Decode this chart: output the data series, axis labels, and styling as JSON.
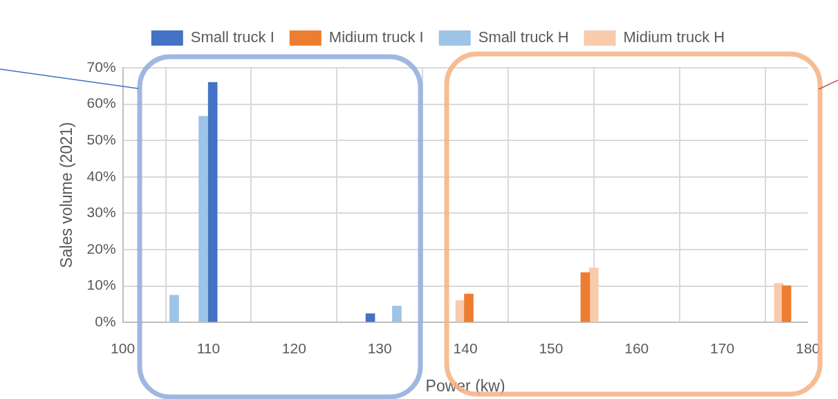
{
  "chart_data": {
    "type": "bar",
    "xlabel": "Power (kw)",
    "ylabel": "Sales volume (2021)",
    "xlim": [
      100,
      180
    ],
    "xticks": [
      100,
      110,
      120,
      130,
      140,
      150,
      160,
      170,
      180
    ],
    "ylim": [
      0,
      70
    ],
    "yticks": [
      {
        "value": 0,
        "label": "0%"
      },
      {
        "value": 10,
        "label": "10%"
      },
      {
        "value": 20,
        "label": "20%"
      },
      {
        "value": 30,
        "label": "30%"
      },
      {
        "value": 40,
        "label": "40%"
      },
      {
        "value": 50,
        "label": "50%"
      },
      {
        "value": 60,
        "label": "60%"
      },
      {
        "value": 70,
        "label": "70%"
      }
    ],
    "series": [
      {
        "name": "Small truck I",
        "color": "#4472c4",
        "x": [
          110.5,
          128.9
        ],
        "values": [
          66,
          2.4
        ]
      },
      {
        "name": "Midium truck I",
        "color": "#ed7d31",
        "x": [
          140.4,
          154,
          177.5
        ],
        "values": [
          7.8,
          13.7,
          10.1
        ]
      },
      {
        "name": "Small truck H",
        "color": "#9dc3e6",
        "x": [
          106,
          109.4,
          132
        ],
        "values": [
          7.5,
          56.7,
          4.5
        ]
      },
      {
        "name": "Midium truck H",
        "color": "#f8cbad",
        "x": [
          139.4,
          155,
          176.6
        ],
        "values": [
          6,
          15,
          10.7
        ]
      }
    ],
    "grid": true,
    "legend": "top"
  }
}
